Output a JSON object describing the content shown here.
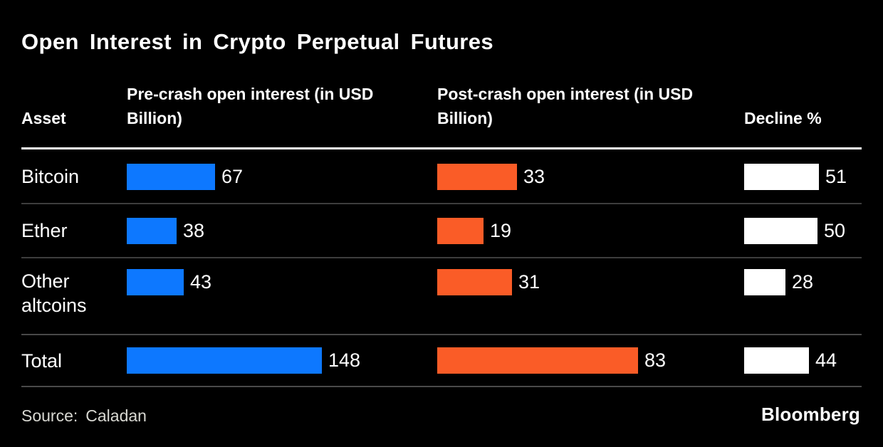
{
  "title": "Open Interest in Crypto Perpetual Futures",
  "header": {
    "asset": "Asset",
    "pre": "Pre-crash open interest (in USD Billion)",
    "post": "Post-crash open interest (in USD Billion)",
    "decline": "Decline %"
  },
  "chart_data": {
    "type": "bar",
    "title": "Open Interest in Crypto Perpetual Futures",
    "orientation": "horizontal",
    "grid": false,
    "legend_position": "none",
    "categories": [
      "Bitcoin",
      "Ether",
      "Other altcoins",
      "Total"
    ],
    "series": [
      {
        "name": "Pre-crash open interest (in USD Billion)",
        "color": "#0d78ff",
        "values": [
          67,
          38,
          43,
          148
        ]
      },
      {
        "name": "Post-crash open interest (in USD Billion)",
        "color": "#fa5c27",
        "values": [
          33,
          19,
          31,
          83
        ]
      },
      {
        "name": "Decline %",
        "color": "#ffffff",
        "values": [
          51,
          50,
          28,
          44
        ]
      }
    ],
    "rows": [
      {
        "asset": "Bitcoin",
        "pre": 67,
        "post": 33,
        "decline": 51
      },
      {
        "asset": "Ether",
        "pre": 38,
        "post": 19,
        "decline": 50
      },
      {
        "asset": "Other altcoins",
        "pre": 43,
        "post": 31,
        "decline": 28
      },
      {
        "asset": "Total",
        "pre": 148,
        "post": 83,
        "decline": 44
      }
    ],
    "bar_colors": {
      "pre": "#0d78ff",
      "post": "#fa5c27",
      "decline": "#ffffff"
    },
    "source": "Caladan"
  },
  "footer": {
    "source_label": "Source:",
    "source_value": "Caladan",
    "brand": "Bloomberg"
  },
  "colors": {
    "background": "#000000",
    "text": "#ffffff",
    "pre_bar": "#0d78ff",
    "post_bar": "#fa5c27",
    "decline_bar": "#ffffff",
    "header_rule": "#ffffff",
    "row_separator": "#3d3d3d",
    "footer_rule": "#4a4a4a",
    "source_text": "#d8d8d2"
  }
}
